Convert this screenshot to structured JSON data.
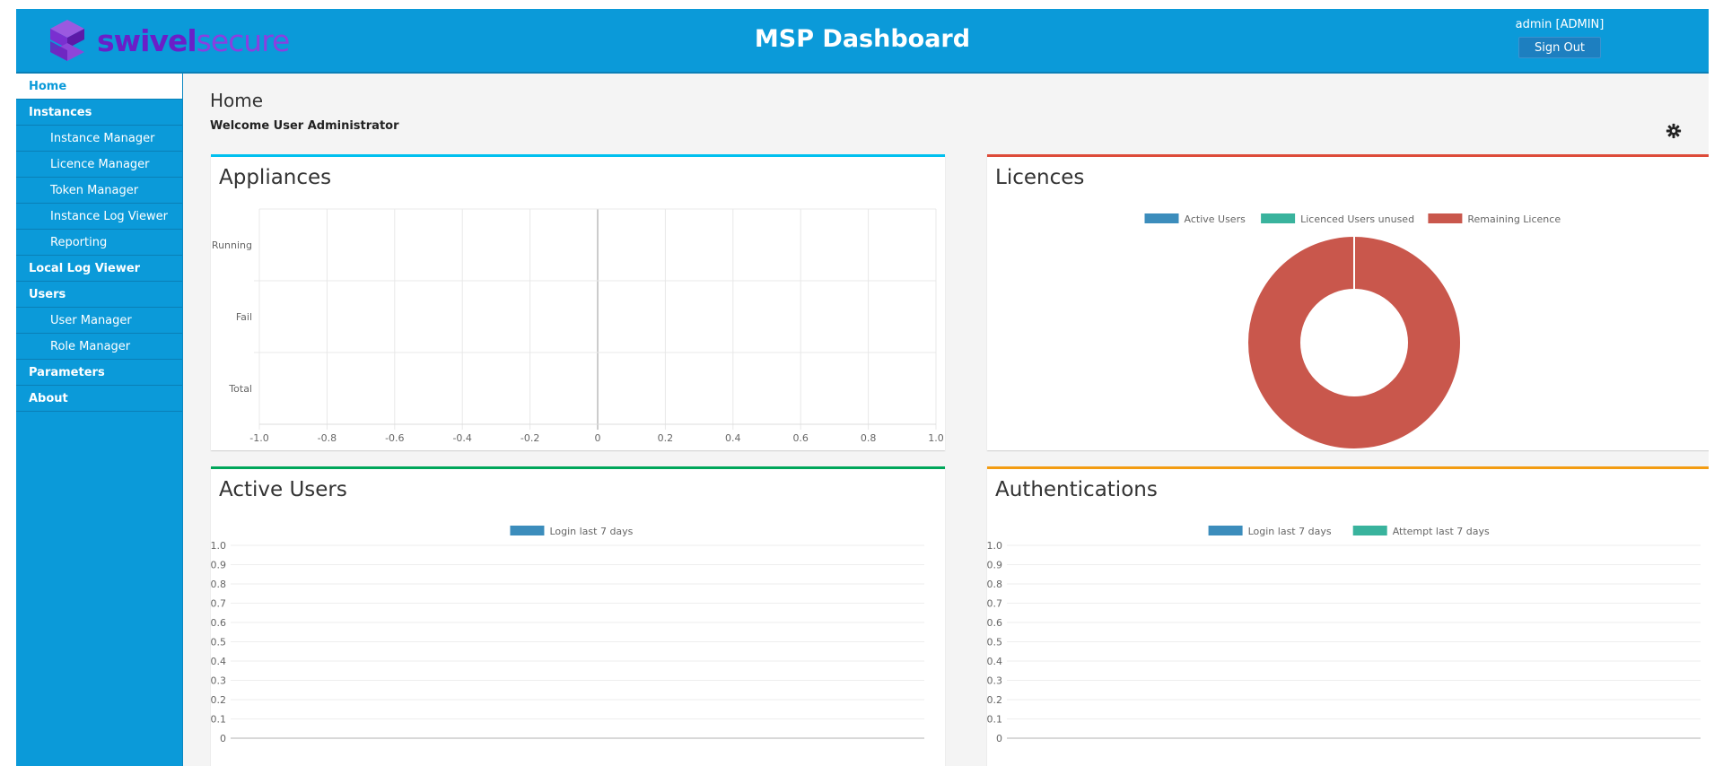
{
  "header": {
    "brand_bold": "swivel",
    "brand_light": "secure",
    "title": "MSP Dashboard",
    "user_label": "admin [ADMIN]",
    "signout_label": "Sign Out"
  },
  "colors": {
    "header_bg": "#0b9ad9",
    "logo": "#7a2fd0",
    "active_users": "#3c8dbc",
    "licenced_unused": "#39b39d",
    "remaining_licence": "#c9574c",
    "attempt": "#39b39d"
  },
  "icons": {
    "logo": "swivel-logo-icon",
    "settings": "gear-icon"
  },
  "sidebar": {
    "items": [
      {
        "label": "Home",
        "sub": false,
        "active": true
      },
      {
        "label": "Instances",
        "sub": false,
        "active": false
      },
      {
        "label": "Instance Manager",
        "sub": true,
        "active": false
      },
      {
        "label": "Licence Manager",
        "sub": true,
        "active": false
      },
      {
        "label": "Token Manager",
        "sub": true,
        "active": false
      },
      {
        "label": "Instance Log Viewer",
        "sub": true,
        "active": false
      },
      {
        "label": "Reporting",
        "sub": true,
        "active": false
      },
      {
        "label": "Local Log Viewer",
        "sub": false,
        "active": false
      },
      {
        "label": "Users",
        "sub": false,
        "active": false
      },
      {
        "label": "User Manager",
        "sub": true,
        "active": false
      },
      {
        "label": "Role Manager",
        "sub": true,
        "active": false
      },
      {
        "label": "Parameters",
        "sub": false,
        "active": false
      },
      {
        "label": "About",
        "sub": false,
        "active": false
      }
    ]
  },
  "main": {
    "page_title": "Home",
    "welcome": "Welcome User Administrator"
  },
  "panels": {
    "appliances": "Appliances",
    "licences": "Licences",
    "active_users": "Active Users",
    "authentications": "Authentications"
  },
  "chart_data": [
    {
      "type": "bar",
      "orientation": "horizontal",
      "panel": "appliances",
      "categories": [
        "Running",
        "Fail",
        "Total"
      ],
      "values": [
        0,
        0,
        0
      ],
      "xlim": [
        -1.0,
        1.0
      ],
      "xticks": [
        "-1.0",
        "-0.8",
        "-0.6",
        "-0.4",
        "-0.2",
        "0",
        "0.2",
        "0.4",
        "0.6",
        "0.8",
        "1.0"
      ],
      "grid": true
    },
    {
      "type": "pie",
      "style": "doughnut",
      "panel": "licences",
      "legend_position": "top",
      "labels": [
        "Active Users",
        "Licenced Users unused",
        "Remaining Licence"
      ],
      "values": [
        0,
        0,
        100
      ]
    },
    {
      "type": "line",
      "panel": "active_users",
      "legend_position": "top",
      "series": [
        {
          "name": "Login last 7 days",
          "values": []
        }
      ],
      "ylim": [
        0,
        1.0
      ],
      "yticks": [
        "1.0",
        "0.9",
        "0.8",
        "0.7",
        "0.6",
        "0.5",
        "0.4",
        "0.3",
        "0.2",
        "0.1",
        "0"
      ],
      "grid": true
    },
    {
      "type": "line",
      "panel": "authentications",
      "legend_position": "top",
      "series": [
        {
          "name": "Login last 7 days",
          "values": []
        },
        {
          "name": "Attempt last 7 days",
          "values": []
        }
      ],
      "ylim": [
        0,
        1.0
      ],
      "yticks": [
        "1.0",
        "0.9",
        "0.8",
        "0.7",
        "0.6",
        "0.5",
        "0.4",
        "0.3",
        "0.2",
        "0.1",
        "0"
      ],
      "grid": true
    }
  ]
}
